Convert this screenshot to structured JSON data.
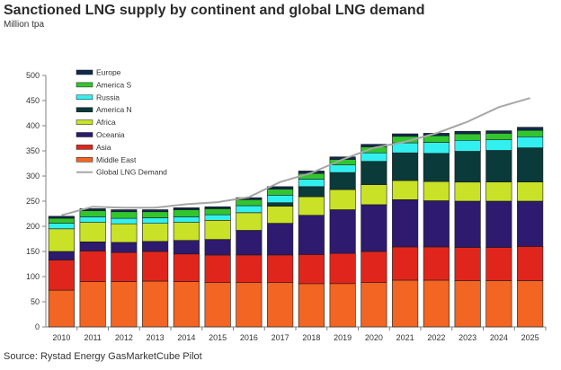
{
  "title": "Sanctioned LNG supply by continent and global LNG demand",
  "unit_label": "Million tpa",
  "source": "Source: Rystad Energy GasMarketCube Pilot",
  "chart_data": {
    "type": "bar",
    "stacked": true,
    "categories": [
      "2010",
      "2011",
      "2012",
      "2013",
      "2014",
      "2015",
      "2016",
      "2017",
      "2018",
      "2019",
      "2020",
      "2021",
      "2022",
      "2023",
      "2024",
      "2025"
    ],
    "ylim": [
      0,
      500
    ],
    "yticks": [
      0,
      50,
      100,
      150,
      200,
      250,
      300,
      350,
      400,
      450,
      500
    ],
    "grid": false,
    "legend_position": "top-left",
    "series": [
      {
        "name": "Middle East",
        "color": "#f26522",
        "values": [
          73,
          90,
          90,
          91,
          90,
          88,
          88,
          88,
          86,
          86,
          88,
          93,
          93,
          92,
          92,
          92
        ]
      },
      {
        "name": "Asia",
        "color": "#e0261c",
        "values": [
          60,
          61,
          58,
          59,
          55,
          55,
          55,
          55,
          58,
          60,
          62,
          66,
          66,
          66,
          66,
          68
        ]
      },
      {
        "name": "Oceania",
        "color": "#2e1a6e",
        "values": [
          17,
          18,
          20,
          20,
          27,
          31,
          49,
          63,
          78,
          87,
          93,
          94,
          92,
          92,
          92,
          90
        ]
      },
      {
        "name": "Africa",
        "color": "#c9e227",
        "values": [
          45,
          39,
          37,
          36,
          36,
          38,
          35,
          34,
          37,
          40,
          40,
          38,
          38,
          38,
          38,
          38
        ]
      },
      {
        "name": "America N",
        "color": "#0b3a3a",
        "values": [
          0,
          0,
          0,
          0,
          0,
          0,
          0,
          7,
          20,
          34,
          46,
          55,
          56,
          61,
          63,
          68
        ]
      },
      {
        "name": "Russia",
        "color": "#33f0f0",
        "values": [
          11,
          11,
          11,
          11,
          11,
          11,
          14,
          15,
          15,
          15,
          17,
          20,
          22,
          22,
          21,
          22
        ]
      },
      {
        "name": "America S",
        "color": "#33c52e",
        "values": [
          10,
          12,
          13,
          12,
          14,
          12,
          12,
          12,
          11,
          11,
          12,
          13,
          13,
          13,
          13,
          13
        ]
      },
      {
        "name": "Europe",
        "color": "#0f2a4e",
        "values": [
          4,
          4,
          4,
          4,
          4,
          4,
          4,
          5,
          5,
          5,
          5,
          5,
          5,
          5,
          5,
          6
        ]
      }
    ],
    "line_series": {
      "name": "Global LNG Demand",
      "color": "#a6a6a6",
      "values": [
        222,
        239,
        237,
        237,
        244,
        248,
        258,
        288,
        306,
        333,
        356,
        368,
        385,
        408,
        437,
        455
      ]
    }
  }
}
